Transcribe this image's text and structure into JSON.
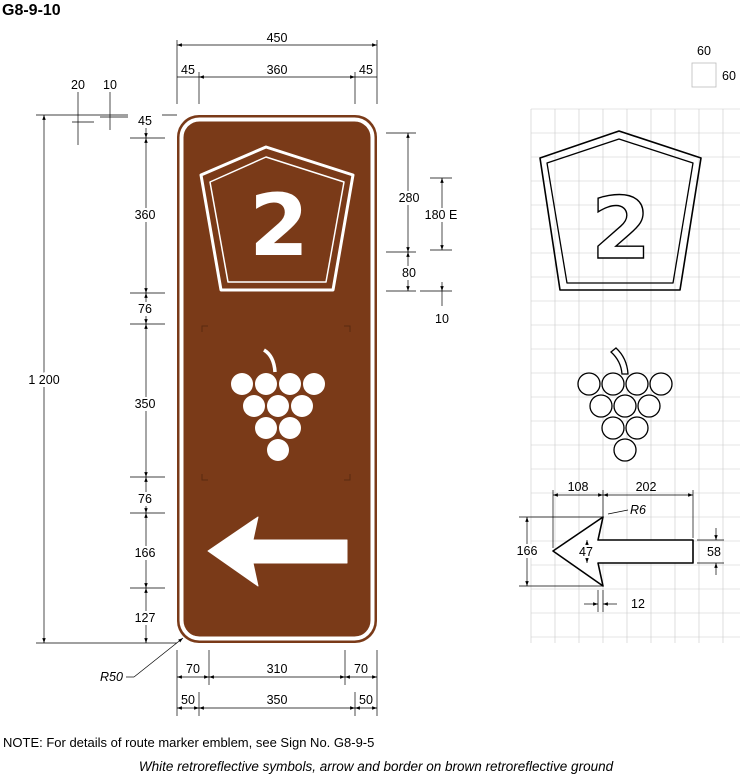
{
  "title": "G8-9-10",
  "route_number": "2",
  "top_dims": {
    "overall": "450",
    "left_margin": "45",
    "inner": "360",
    "right_margin": "45"
  },
  "left_dims": {
    "border_20": "20",
    "border_10": "10",
    "top_45": "45",
    "marker_360": "360",
    "gap_76a": "76",
    "grapes_350": "350",
    "gap_76b": "76",
    "arrow_166": "166",
    "bottom_127": "127",
    "overall_1200": "1 200"
  },
  "right_dims": {
    "marker_280": "280",
    "numeral_180": "180 E",
    "marker_80": "80",
    "gap_10": "10"
  },
  "bottom_dims": {
    "left_70": "70",
    "middle_310": "310",
    "right_70": "70",
    "left_50": "50",
    "middle_350": "350",
    "right_50": "50"
  },
  "radius_label": "R50",
  "grid_key": {
    "width": "60",
    "height": "60"
  },
  "arrow_dims": {
    "head_108": "108",
    "shaft_202": "202",
    "radius_r6": "R6",
    "height_166": "166",
    "shaft_47": "47",
    "end_58": "58",
    "tip_12": "12"
  },
  "note": "NOTE: For details of route marker emblem, see Sign No. G8-9-5",
  "caption": "White retroreflective symbols, arrow and border on brown retroreflective ground",
  "colors": {
    "sign_ground": "#7a3a18",
    "legend": "#ffffff",
    "dimension_lines": "#000000",
    "grid": "#c9c9c9"
  }
}
